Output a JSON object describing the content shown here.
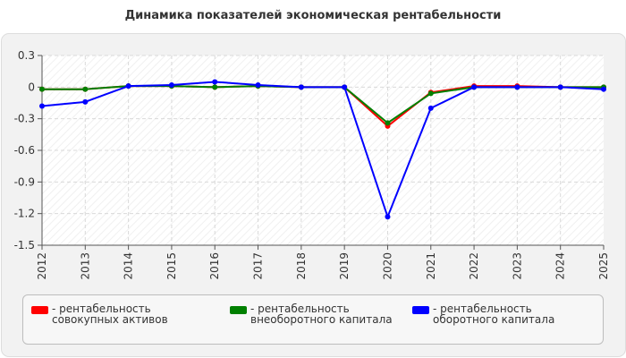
{
  "title": "Динамика показателей экономическая рентабельности",
  "chart_data": {
    "type": "line",
    "title": "Динамика показателей экономическая рентабельности",
    "x": [
      "2012",
      "2013",
      "2014",
      "2015",
      "2016",
      "2017",
      "2018",
      "2019",
      "2020",
      "2021",
      "2022",
      "2023",
      "2024",
      "2025"
    ],
    "ylim": [
      -1.5,
      0.3
    ],
    "yticks": [
      0.3,
      0,
      -0.3,
      -0.6,
      -0.9,
      -1.2,
      -1.5
    ],
    "ytick_labels": [
      "0.3",
      "0",
      "-0.3",
      "-0.6",
      "-0.9",
      "-1.2",
      "-1.5"
    ],
    "grid": true,
    "legend_position": "bottom",
    "series": [
      {
        "name": "- рентабельность совокупных активов",
        "color": "#ff0000",
        "values": [
          -0.02,
          -0.02,
          0.01,
          0.01,
          0.0,
          0.01,
          0.0,
          0.0,
          -0.37,
          -0.05,
          0.01,
          0.01,
          0.0,
          0.0
        ]
      },
      {
        "name": "- рентабельность внеоборотного капитала",
        "color": "#008000",
        "values": [
          -0.02,
          -0.02,
          0.01,
          0.01,
          0.0,
          0.01,
          0.0,
          0.0,
          -0.34,
          -0.06,
          0.0,
          0.0,
          0.0,
          0.0
        ]
      },
      {
        "name": "- рентабельность оборотного капитала",
        "color": "#0000ff",
        "values": [
          -0.18,
          -0.14,
          0.01,
          0.02,
          0.05,
          0.02,
          0.0,
          0.0,
          -1.23,
          -0.2,
          0.0,
          0.0,
          0.0,
          -0.02
        ]
      }
    ]
  }
}
